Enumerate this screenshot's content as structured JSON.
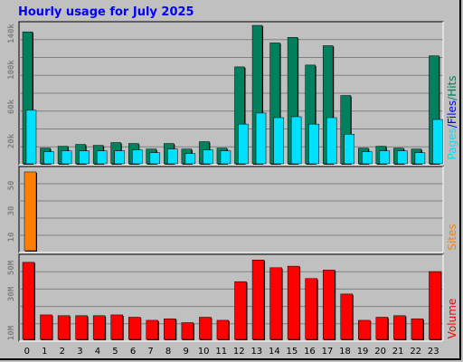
{
  "title": "Hourly usage for July 2025",
  "colors": {
    "hits": "#00805c",
    "files": "#0000ff",
    "pages": "#00e0ff",
    "sites": "#ff8000",
    "volume": "#ff0000",
    "background": "#c0c0c0",
    "gridline": "#808080",
    "title": "#0000ff"
  },
  "chart_data": [
    {
      "type": "bar",
      "panel": "top",
      "categories": [
        "0",
        "1",
        "2",
        "3",
        "4",
        "5",
        "6",
        "7",
        "8",
        "9",
        "10",
        "11",
        "12",
        "13",
        "14",
        "15",
        "16",
        "17",
        "18",
        "19",
        "20",
        "21",
        "22",
        "23"
      ],
      "side_label": [
        "Pages",
        "/",
        "Files",
        "/",
        "Hits"
      ],
      "yticks": [
        "20k",
        "60k",
        "100k",
        "140k"
      ],
      "ylim": [
        0,
        153000
      ],
      "grid": true,
      "series": [
        {
          "name": "Hits",
          "values": [
            144000,
            18000,
            20000,
            22000,
            21000,
            24000,
            23000,
            17000,
            23000,
            17000,
            25000,
            18000,
            106000,
            151000,
            132000,
            138000,
            108000,
            129000,
            75000,
            18000,
            20000,
            18000,
            17000,
            118000
          ]
        },
        {
          "name": "Files",
          "values": [
            59000,
            14000,
            15000,
            15000,
            15000,
            15000,
            16000,
            13000,
            17000,
            12000,
            16000,
            15000,
            44000,
            56000,
            51000,
            52000,
            44000,
            51000,
            33000,
            14000,
            15000,
            15000,
            13000,
            49000
          ]
        },
        {
          "name": "Pages",
          "values": [
            59000,
            14000,
            15000,
            15000,
            15000,
            15000,
            16000,
            13000,
            17000,
            12000,
            16000,
            15000,
            44000,
            56000,
            51000,
            52000,
            44000,
            51000,
            33000,
            14000,
            15000,
            15000,
            13000,
            49000
          ]
        }
      ]
    },
    {
      "type": "bar",
      "panel": "middle",
      "categories": [
        "0",
        "1",
        "2",
        "3",
        "4",
        "5",
        "6",
        "7",
        "8",
        "9",
        "10",
        "11",
        "12",
        "13",
        "14",
        "15",
        "16",
        "17",
        "18",
        "19",
        "20",
        "21",
        "22",
        "23"
      ],
      "side_label": [
        "Sites"
      ],
      "yticks": [
        "10",
        "30",
        "50"
      ],
      "ylim": [
        0,
        70
      ],
      "grid": true,
      "series": [
        {
          "name": "Sites",
          "values": [
            67,
            0,
            0,
            0,
            0,
            0,
            0,
            0,
            0,
            0,
            0,
            0,
            0,
            0,
            0,
            0,
            0,
            0,
            0,
            0,
            0,
            0,
            0,
            0
          ]
        }
      ]
    },
    {
      "type": "bar",
      "panel": "bottom",
      "categories": [
        "0",
        "1",
        "2",
        "3",
        "4",
        "5",
        "6",
        "7",
        "8",
        "9",
        "10",
        "11",
        "12",
        "13",
        "14",
        "15",
        "16",
        "17",
        "18",
        "19",
        "20",
        "21",
        "22",
        "23"
      ],
      "side_label": [
        "Volume"
      ],
      "yticks": [
        "10M",
        "30M",
        "50M"
      ],
      "ylim": [
        0,
        55
      ],
      "grid": true,
      "series": [
        {
          "name": "Volume",
          "values": [
            51,
            17,
            16.5,
            16.5,
            16.5,
            17,
            15.5,
            13.5,
            14.5,
            12,
            15.5,
            13.5,
            38.5,
            52.5,
            47.5,
            48.5,
            40.5,
            46,
            30.5,
            13.5,
            15.5,
            16.5,
            14.5,
            45
          ]
        }
      ]
    }
  ]
}
